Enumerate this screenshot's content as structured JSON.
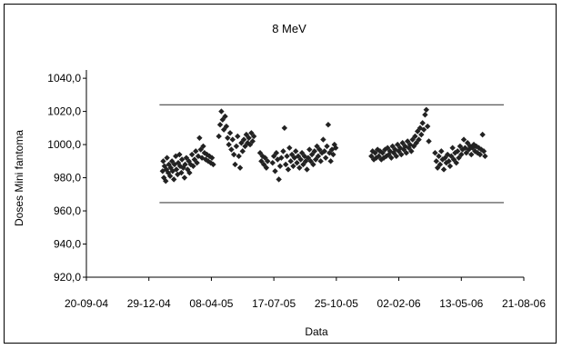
{
  "chart_data": {
    "type": "scatter",
    "title": "8 MeV",
    "xlabel": "Data",
    "ylabel": "Doses Mini fantoma",
    "ylim": [
      920,
      1045
    ],
    "xlim": [
      "2004-09-20",
      "2006-08-21"
    ],
    "x_ticks": [
      "20-09-04",
      "29-12-04",
      "08-04-05",
      "17-07-05",
      "25-10-05",
      "02-02-06",
      "13-05-06",
      "21-08-06"
    ],
    "y_ticks": [
      "920,0",
      "940,0",
      "960,0",
      "980,0",
      "1000,0",
      "1020,0",
      "1040,0"
    ],
    "grid": false,
    "legend": "none",
    "marker": "diamond",
    "marker_color": "#222222",
    "limit_lines": [
      {
        "y": 1024,
        "x_start": "2005-01-15",
        "x_end": "2006-07-20"
      },
      {
        "y": 965,
        "x_start": "2005-01-15",
        "x_end": "2006-07-20"
      }
    ],
    "points": [
      [
        "2005-01-20",
        984
      ],
      [
        "2005-01-21",
        990
      ],
      [
        "2005-01-22",
        980
      ],
      [
        "2005-01-23",
        987
      ],
      [
        "2005-01-25",
        978
      ],
      [
        "2005-01-26",
        985
      ],
      [
        "2005-01-27",
        992
      ],
      [
        "2005-01-29",
        983
      ],
      [
        "2005-01-30",
        988
      ],
      [
        "2005-02-01",
        981
      ],
      [
        "2005-02-02",
        986
      ],
      [
        "2005-02-04",
        990
      ],
      [
        "2005-02-05",
        984
      ],
      [
        "2005-02-07",
        979
      ],
      [
        "2005-02-08",
        988
      ],
      [
        "2005-02-10",
        993
      ],
      [
        "2005-02-11",
        985
      ],
      [
        "2005-02-13",
        982
      ],
      [
        "2005-02-14",
        989
      ],
      [
        "2005-02-16",
        994
      ],
      [
        "2005-02-17",
        987
      ],
      [
        "2005-02-19",
        983
      ],
      [
        "2005-02-20",
        991
      ],
      [
        "2005-02-22",
        986
      ],
      [
        "2005-02-24",
        980
      ],
      [
        "2005-02-25",
        988
      ],
      [
        "2005-02-27",
        992
      ],
      [
        "2005-03-01",
        985
      ],
      [
        "2005-03-03",
        990
      ],
      [
        "2005-03-04",
        983
      ],
      [
        "2005-03-06",
        988
      ],
      [
        "2005-03-08",
        994
      ],
      [
        "2005-03-10",
        987
      ],
      [
        "2005-03-12",
        991
      ],
      [
        "2005-03-14",
        996
      ],
      [
        "2005-03-16",
        989
      ],
      [
        "2005-03-18",
        993
      ],
      [
        "2005-03-20",
        1004
      ],
      [
        "2005-03-22",
        997
      ],
      [
        "2005-03-24",
        992
      ],
      [
        "2005-03-26",
        999
      ],
      [
        "2005-03-28",
        995
      ],
      [
        "2005-03-30",
        991
      ],
      [
        "2005-04-01",
        994
      ],
      [
        "2005-04-03",
        990
      ],
      [
        "2005-04-05",
        993
      ],
      [
        "2005-04-07",
        989
      ],
      [
        "2005-04-09",
        992
      ],
      [
        "2005-04-11",
        988
      ],
      [
        "2005-04-20",
        1005
      ],
      [
        "2005-04-22",
        1012
      ],
      [
        "2005-04-24",
        1020
      ],
      [
        "2005-04-26",
        1015
      ],
      [
        "2005-04-28",
        1009
      ],
      [
        "2005-04-30",
        1017
      ],
      [
        "2005-05-02",
        1011
      ],
      [
        "2005-05-04",
        1004
      ],
      [
        "2005-05-06",
        1000
      ],
      [
        "2005-05-08",
        1007
      ],
      [
        "2005-05-10",
        997
      ],
      [
        "2005-05-12",
        1003
      ],
      [
        "2005-05-14",
        994
      ],
      [
        "2005-05-16",
        988
      ],
      [
        "2005-05-18",
        999
      ],
      [
        "2005-05-20",
        1005
      ],
      [
        "2005-05-22",
        993
      ],
      [
        "2005-05-24",
        986
      ],
      [
        "2005-05-26",
        1001
      ],
      [
        "2005-05-28",
        996
      ],
      [
        "2005-05-30",
        1003
      ],
      [
        "2005-06-01",
        999
      ],
      [
        "2005-06-03",
        1006
      ],
      [
        "2005-06-05",
        1001
      ],
      [
        "2005-06-07",
        1004
      ],
      [
        "2005-06-09",
        1000
      ],
      [
        "2005-06-11",
        1007
      ],
      [
        "2005-06-13",
        1002
      ],
      [
        "2005-06-15",
        1005
      ],
      [
        "2005-06-25",
        995
      ],
      [
        "2005-06-27",
        990
      ],
      [
        "2005-06-29",
        993
      ],
      [
        "2005-07-01",
        988
      ],
      [
        "2005-07-03",
        992
      ],
      [
        "2005-07-05",
        986
      ],
      [
        "2005-07-07",
        990
      ],
      [
        "2005-07-15",
        989
      ],
      [
        "2005-07-17",
        993
      ],
      [
        "2005-07-19",
        984
      ],
      [
        "2005-07-21",
        995
      ],
      [
        "2005-07-23",
        991
      ],
      [
        "2005-07-25",
        979
      ],
      [
        "2005-07-27",
        987
      ],
      [
        "2005-07-29",
        992
      ],
      [
        "2005-08-01",
        996
      ],
      [
        "2005-08-03",
        1010
      ],
      [
        "2005-08-05",
        988
      ],
      [
        "2005-08-07",
        993
      ],
      [
        "2005-08-09",
        985
      ],
      [
        "2005-08-11",
        998
      ],
      [
        "2005-08-13",
        990
      ],
      [
        "2005-08-15",
        994
      ],
      [
        "2005-08-17",
        987
      ],
      [
        "2005-08-19",
        992
      ],
      [
        "2005-08-21",
        996
      ],
      [
        "2005-08-23",
        989
      ],
      [
        "2005-08-25",
        993
      ],
      [
        "2005-08-27",
        986
      ],
      [
        "2005-08-29",
        991
      ],
      [
        "2005-08-31",
        995
      ],
      [
        "2005-09-02",
        988
      ],
      [
        "2005-09-04",
        993
      ],
      [
        "2005-09-06",
        990
      ],
      [
        "2005-09-08",
        985
      ],
      [
        "2005-09-10",
        992
      ],
      [
        "2005-09-12",
        997
      ],
      [
        "2005-09-14",
        990
      ],
      [
        "2005-09-16",
        994
      ],
      [
        "2005-09-18",
        988
      ],
      [
        "2005-09-20",
        996
      ],
      [
        "2005-09-22",
        991
      ],
      [
        "2005-09-24",
        999
      ],
      [
        "2005-09-26",
        993
      ],
      [
        "2005-09-28",
        997
      ],
      [
        "2005-09-30",
        990
      ],
      [
        "2005-10-02",
        995
      ],
      [
        "2005-10-04",
        1003
      ],
      [
        "2005-10-06",
        996
      ],
      [
        "2005-10-08",
        992
      ],
      [
        "2005-10-10",
        999
      ],
      [
        "2005-10-12",
        1012
      ],
      [
        "2005-10-14",
        995
      ],
      [
        "2005-10-16",
        990
      ],
      [
        "2005-10-18",
        997
      ],
      [
        "2005-10-20",
        994
      ],
      [
        "2005-10-22",
        1000
      ],
      [
        "2005-10-24",
        998
      ],
      [
        "2005-12-20",
        993
      ],
      [
        "2005-12-22",
        996
      ],
      [
        "2005-12-24",
        991
      ],
      [
        "2005-12-26",
        995
      ],
      [
        "2005-12-28",
        992
      ],
      [
        "2005-12-30",
        997
      ],
      [
        "2006-01-01",
        993
      ],
      [
        "2006-01-03",
        996
      ],
      [
        "2006-01-05",
        991
      ],
      [
        "2006-01-07",
        995
      ],
      [
        "2006-01-09",
        992
      ],
      [
        "2006-01-11",
        997
      ],
      [
        "2006-01-13",
        993
      ],
      [
        "2006-01-15",
        998
      ],
      [
        "2006-01-17",
        994
      ],
      [
        "2006-01-19",
        996
      ],
      [
        "2006-01-21",
        992
      ],
      [
        "2006-01-23",
        999
      ],
      [
        "2006-01-25",
        995
      ],
      [
        "2006-01-27",
        997
      ],
      [
        "2006-01-29",
        993
      ],
      [
        "2006-01-31",
        1000
      ],
      [
        "2006-02-02",
        996
      ],
      [
        "2006-02-04",
        998
      ],
      [
        "2006-02-06",
        994
      ],
      [
        "2006-02-08",
        1001
      ],
      [
        "2006-02-10",
        997
      ],
      [
        "2006-02-12",
        999
      ],
      [
        "2006-02-14",
        995
      ],
      [
        "2006-02-16",
        1002
      ],
      [
        "2006-02-18",
        998
      ],
      [
        "2006-02-20",
        1000
      ],
      [
        "2006-02-22",
        996
      ],
      [
        "2006-02-24",
        1003
      ],
      [
        "2006-02-26",
        999
      ],
      [
        "2006-02-28",
        1005
      ],
      [
        "2006-03-02",
        1001
      ],
      [
        "2006-03-04",
        1008
      ],
      [
        "2006-03-06",
        1003
      ],
      [
        "2006-03-08",
        1010
      ],
      [
        "2006-03-10",
        1006
      ],
      [
        "2006-03-12",
        1013
      ],
      [
        "2006-03-14",
        1009
      ],
      [
        "2006-03-16",
        1018
      ],
      [
        "2006-03-18",
        1021
      ],
      [
        "2006-03-20",
        1011
      ],
      [
        "2006-03-22",
        1002
      ],
      [
        "2006-04-01",
        995
      ],
      [
        "2006-04-03",
        990
      ],
      [
        "2006-04-05",
        986
      ],
      [
        "2006-04-07",
        993
      ],
      [
        "2006-04-09",
        988
      ],
      [
        "2006-04-11",
        996
      ],
      [
        "2006-04-13",
        991
      ],
      [
        "2006-04-15",
        985
      ],
      [
        "2006-04-17",
        992
      ],
      [
        "2006-04-19",
        989
      ],
      [
        "2006-04-21",
        994
      ],
      [
        "2006-04-23",
        990
      ],
      [
        "2006-04-25",
        987
      ],
      [
        "2006-04-27",
        993
      ],
      [
        "2006-04-29",
        998
      ],
      [
        "2006-05-01",
        991
      ],
      [
        "2006-05-03",
        995
      ],
      [
        "2006-05-05",
        989
      ],
      [
        "2006-05-07",
        996
      ],
      [
        "2006-05-09",
        992
      ],
      [
        "2006-05-11",
        999
      ],
      [
        "2006-05-13",
        994
      ],
      [
        "2006-05-15",
        997
      ],
      [
        "2006-05-17",
        1003
      ],
      [
        "2006-05-19",
        998
      ],
      [
        "2006-05-21",
        995
      ],
      [
        "2006-05-23",
        1001
      ],
      [
        "2006-05-25",
        997
      ],
      [
        "2006-05-27",
        999
      ],
      [
        "2006-05-29",
        994
      ],
      [
        "2006-05-31",
        998
      ],
      [
        "2006-06-02",
        1000
      ],
      [
        "2006-06-04",
        996
      ],
      [
        "2006-06-06",
        999
      ],
      [
        "2006-06-08",
        995
      ],
      [
        "2006-06-10",
        998
      ],
      [
        "2006-06-12",
        994
      ],
      [
        "2006-06-14",
        997
      ],
      [
        "2006-06-16",
        1006
      ],
      [
        "2006-06-18",
        996
      ],
      [
        "2006-06-20",
        993
      ]
    ]
  }
}
